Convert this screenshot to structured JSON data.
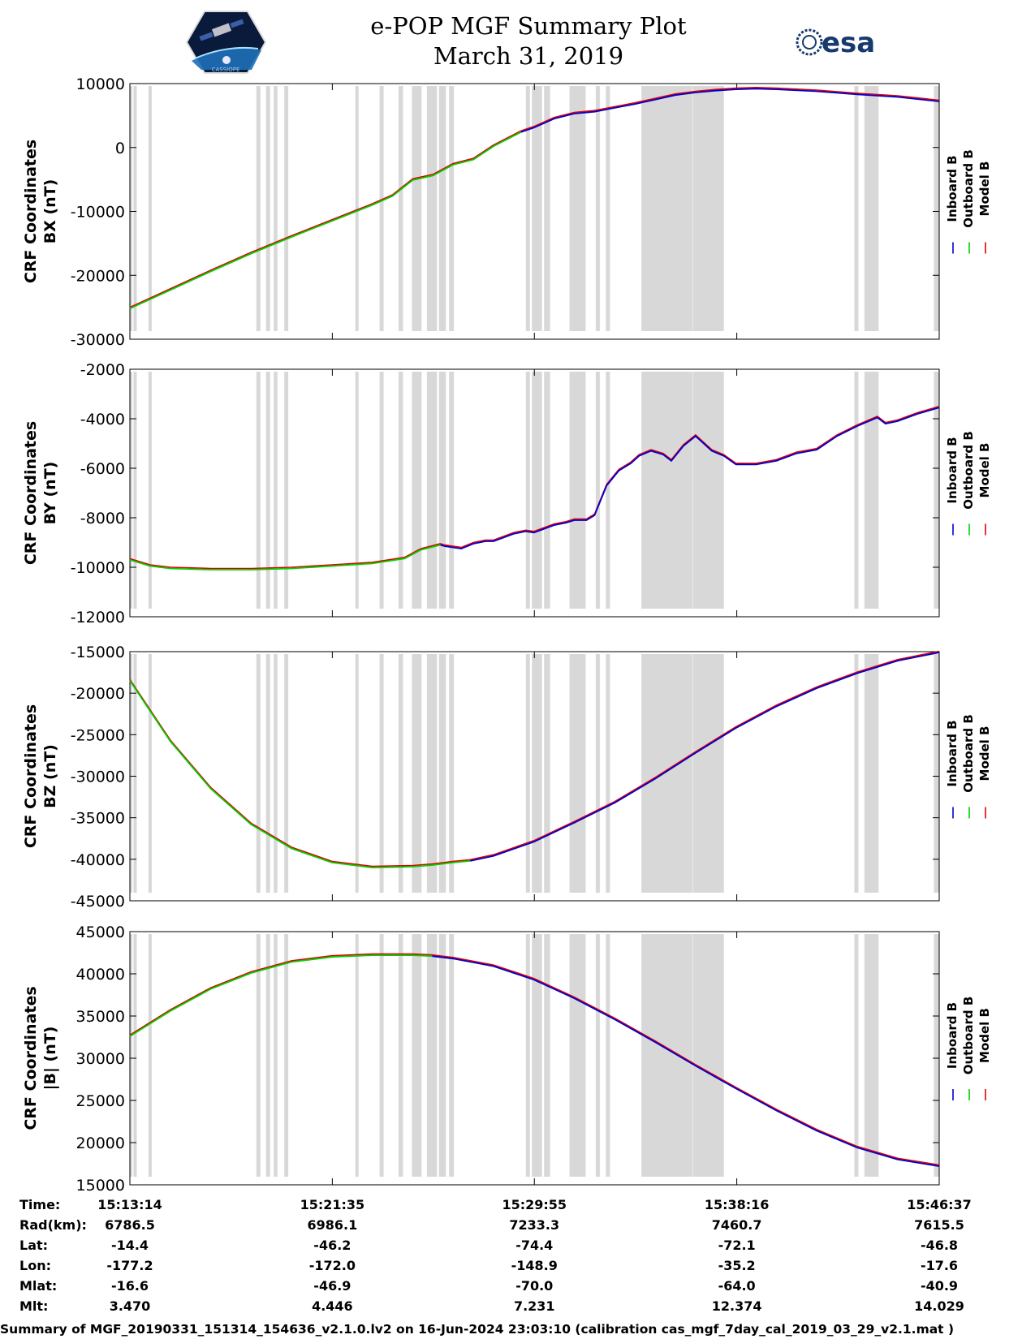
{
  "header": {
    "title_line1": "e-POP MGF Summary Plot",
    "title_line2": "March 31, 2019",
    "left_logo": "cassiope-logo",
    "left_logo_text": "CASSIOPE",
    "right_logo_text": "esa"
  },
  "colors": {
    "inboard": "#0000d0",
    "outboard": "#00d000",
    "model": "#e00000",
    "gap_shading": "#d8d8d8"
  },
  "chart_data": {
    "type": "line",
    "x_unit": "seconds since 15:13:14",
    "x_range": [
      0,
      2003
    ],
    "x_tick_labels": [
      "15:13:14",
      "15:21:35",
      "15:29:55",
      "15:38:16",
      "15:46:37"
    ],
    "x_tick_values": [
      0,
      501,
      1001,
      1502,
      2003
    ],
    "legend": [
      "Inboard B",
      "Outboard B",
      "Model B"
    ],
    "gap_intervals": [
      [
        0,
        6
      ],
      [
        9,
        17
      ],
      [
        46,
        54
      ],
      [
        313,
        323
      ],
      [
        337,
        347
      ],
      [
        356,
        365
      ],
      [
        382,
        392
      ],
      [
        558,
        566
      ],
      [
        618,
        628
      ],
      [
        665,
        676
      ],
      [
        698,
        722
      ],
      [
        735,
        760
      ],
      [
        765,
        782
      ],
      [
        790,
        802
      ],
      [
        980,
        990
      ],
      [
        995,
        1020
      ],
      [
        1025,
        1040
      ],
      [
        1088,
        1128
      ],
      [
        1153,
        1163
      ],
      [
        1178,
        1188
      ],
      [
        1266,
        1392
      ],
      [
        1393,
        1470
      ],
      [
        1793,
        1803
      ],
      [
        1818,
        1853
      ],
      [
        1990,
        2003
      ]
    ],
    "blue_start_x": [
      968,
      768,
      842,
      748
    ],
    "panels": [
      {
        "name": "bx",
        "ylabel_line1": "CRF Coordinates",
        "ylabel_line2": "BX (nT)",
        "ylim": [
          -30000,
          10000
        ],
        "y_ticks": [
          10000,
          0,
          -10000,
          -20000,
          -30000
        ],
        "x": [
          0,
          100,
          200,
          300,
          400,
          500,
          600,
          650,
          700,
          750,
          800,
          850,
          900,
          968,
          1000,
          1050,
          1100,
          1150,
          1200,
          1250,
          1300,
          1350,
          1400,
          1450,
          1500,
          1550,
          1600,
          1700,
          1800,
          1900,
          2003
        ],
        "values": [
          -25200,
          -22300,
          -19400,
          -16600,
          -14000,
          -11500,
          -9000,
          -7600,
          -5100,
          -4400,
          -2700,
          -1900,
          200,
          2400,
          3100,
          4500,
          5300,
          5600,
          6200,
          6800,
          7500,
          8200,
          8600,
          8900,
          9100,
          9200,
          9100,
          8800,
          8300,
          7900,
          7200
        ]
      },
      {
        "name": "by",
        "ylabel_line1": "CRF Coordinates",
        "ylabel_line2": "BY (nT)",
        "ylim": [
          -12000,
          -2000
        ],
        "y_ticks": [
          -2000,
          -4000,
          -6000,
          -8000,
          -10000,
          -12000
        ],
        "x": [
          0,
          50,
          100,
          200,
          300,
          400,
          500,
          600,
          680,
          720,
          768,
          780,
          820,
          850,
          880,
          900,
          950,
          980,
          1000,
          1050,
          1080,
          1100,
          1130,
          1150,
          1180,
          1210,
          1240,
          1260,
          1290,
          1320,
          1340,
          1370,
          1400,
          1440,
          1470,
          1500,
          1550,
          1600,
          1650,
          1700,
          1750,
          1800,
          1850,
          1870,
          1900,
          1950,
          2003
        ],
        "values": [
          -9700,
          -9950,
          -10050,
          -10100,
          -10100,
          -10050,
          -9950,
          -9850,
          -9650,
          -9300,
          -9100,
          -9150,
          -9250,
          -9050,
          -8950,
          -8950,
          -8650,
          -8550,
          -8600,
          -8300,
          -8200,
          -8100,
          -8100,
          -7900,
          -6700,
          -6100,
          -5800,
          -5500,
          -5300,
          -5450,
          -5700,
          -5100,
          -4700,
          -5300,
          -5500,
          -5850,
          -5850,
          -5700,
          -5400,
          -5250,
          -4700,
          -4300,
          -3950,
          -4200,
          -4100,
          -3800,
          -3550
        ]
      },
      {
        "name": "bz",
        "ylabel_line1": "CRF Coordinates",
        "ylabel_line2": "BZ (nT)",
        "ylim": [
          -45000,
          -15000
        ],
        "y_ticks": [
          -15000,
          -20000,
          -25000,
          -30000,
          -35000,
          -40000,
          -45000
        ],
        "x": [
          0,
          100,
          200,
          300,
          400,
          500,
          600,
          700,
          750,
          800,
          842,
          900,
          1000,
          1100,
          1200,
          1300,
          1400,
          1500,
          1600,
          1700,
          1800,
          1900,
          2003
        ],
        "values": [
          -18500,
          -25800,
          -31500,
          -35800,
          -38700,
          -40400,
          -41000,
          -40900,
          -40700,
          -40400,
          -40200,
          -39600,
          -37900,
          -35600,
          -33200,
          -30300,
          -27200,
          -24200,
          -21600,
          -19400,
          -17600,
          -16100,
          -15100
        ]
      },
      {
        "name": "bmag",
        "ylabel_line1": "CRF Coordinates",
        "ylabel_line2": "|B| (nT)",
        "ylim": [
          15000,
          45000
        ],
        "y_ticks": [
          45000,
          40000,
          35000,
          30000,
          25000,
          20000,
          15000
        ],
        "x": [
          0,
          100,
          200,
          300,
          400,
          500,
          600,
          700,
          748,
          800,
          900,
          1000,
          1100,
          1200,
          1300,
          1400,
          1500,
          1600,
          1700,
          1800,
          1900,
          2003
        ],
        "values": [
          32600,
          35600,
          38200,
          40100,
          41400,
          42000,
          42200,
          42200,
          42100,
          41800,
          40900,
          39300,
          37100,
          34600,
          31900,
          29100,
          26400,
          23800,
          21400,
          19400,
          18000,
          17200
        ]
      }
    ]
  },
  "orbit_table": {
    "row_labels": [
      "Time:",
      "Rad(km):",
      "Lat:",
      "Lon:",
      "Mlat:",
      "Mlt:"
    ],
    "columns": [
      [
        "15:13:14",
        "6786.5",
        "-14.4",
        "-177.2",
        "-16.6",
        "3.470"
      ],
      [
        "15:21:35",
        "6986.1",
        "-46.2",
        "-172.0",
        "-46.9",
        "4.446"
      ],
      [
        "15:29:55",
        "7233.3",
        "-74.4",
        "-148.9",
        "-70.0",
        "7.231"
      ],
      [
        "15:38:16",
        "7460.7",
        "-72.1",
        "-35.2",
        "-64.0",
        "12.374"
      ],
      [
        "15:46:37",
        "7615.5",
        "-46.8",
        "-17.6",
        "-40.9",
        "14.029"
      ]
    ]
  },
  "footer": "Summary of MGF_20190331_151314_154636_v2.1.0.lv2 on 16-Jun-2024 23:03:10 (calibration cas_mgf_7day_cal_2019_03_29_v2.1.mat )"
}
